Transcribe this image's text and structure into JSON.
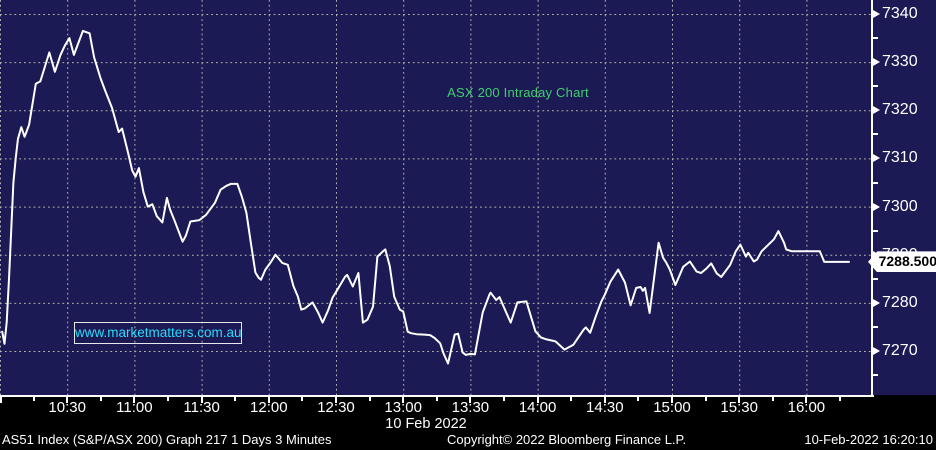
{
  "colors": {
    "plot_background": "#1c1a55",
    "grid": "#b4b4ac",
    "line": "#ffffff",
    "title_green": "#3fce6e",
    "watermark_cyan": "#2bd9f8",
    "axis_text": "#ffffff",
    "footer_background": "#000000",
    "badge_background": "#ffffff",
    "badge_text": "#000000"
  },
  "watermark": {
    "text": "www.marketmatters.com.au"
  },
  "footer": {
    "left": "AS51 Index (S&P/ASX 200) Graph 217 1 Days 3 Minutes",
    "center": "Copyright© 2022 Bloomberg Finance L.P.",
    "right": "10-Feb-2022 16:20:10"
  },
  "chart_data": {
    "type": "line",
    "title": "ASX 200 Intraday Chart",
    "date_label": "10 Feb 2022",
    "last_price": 7288.5,
    "last_price_label": "7288.500",
    "x_unit": "minutes since 10:00",
    "xlim_minutes": [
      0,
      389
    ],
    "ylim": [
      7260.5,
      7343
    ],
    "x_ticks_major": [
      {
        "label": "",
        "t": 0
      },
      {
        "label": "10:30",
        "t": 30
      },
      {
        "label": "11:00",
        "t": 60
      },
      {
        "label": "11:30",
        "t": 90
      },
      {
        "label": "12:00",
        "t": 120
      },
      {
        "label": "12:30",
        "t": 150
      },
      {
        "label": "13:00",
        "t": 180
      },
      {
        "label": "13:30",
        "t": 210
      },
      {
        "label": "14:00",
        "t": 240
      },
      {
        "label": "14:30",
        "t": 270
      },
      {
        "label": "15:00",
        "t": 300
      },
      {
        "label": "15:30",
        "t": 330
      },
      {
        "label": "16:00",
        "t": 360
      }
    ],
    "x_ticks_minor_t": [
      15,
      45,
      75,
      105,
      135,
      165,
      195,
      225,
      255,
      285,
      315,
      345,
      375
    ],
    "y_ticks_major": [
      7340,
      7330,
      7320,
      7310,
      7300,
      7290,
      7280,
      7270
    ],
    "y_ticks_minor": [
      7335,
      7325,
      7315,
      7305,
      7295,
      7285,
      7275,
      7265
    ],
    "grid": "dotted",
    "legend_position": "none",
    "series": [
      {
        "name": "ASX 200 Index (AS51)",
        "color": "#ffffff",
        "points": [
          [
            1,
            7274
          ],
          [
            2,
            7271.5
          ],
          [
            3,
            7276
          ],
          [
            4,
            7285
          ],
          [
            5,
            7295
          ],
          [
            6,
            7305
          ],
          [
            7,
            7310
          ],
          [
            8,
            7314
          ],
          [
            9.5,
            7316.5
          ],
          [
            11,
            7314.5
          ],
          [
            13,
            7317
          ],
          [
            16,
            7325.5
          ],
          [
            18,
            7326
          ],
          [
            20,
            7329
          ],
          [
            22,
            7332
          ],
          [
            24.5,
            7328
          ],
          [
            27,
            7331.5
          ],
          [
            29,
            7333.5
          ],
          [
            31,
            7335
          ],
          [
            33,
            7331.5
          ],
          [
            35,
            7334
          ],
          [
            37,
            7336.5
          ],
          [
            40,
            7336
          ],
          [
            42,
            7331
          ],
          [
            45,
            7326.5
          ],
          [
            47,
            7324
          ],
          [
            50,
            7320.5
          ],
          [
            53,
            7315.5
          ],
          [
            54.5,
            7316.2
          ],
          [
            57,
            7311.5
          ],
          [
            59,
            7307.5
          ],
          [
            60.5,
            7306.2
          ],
          [
            62,
            7308
          ],
          [
            64,
            7303
          ],
          [
            66,
            7300
          ],
          [
            68,
            7300.5
          ],
          [
            70,
            7298
          ],
          [
            72.5,
            7296.7
          ],
          [
            74.5,
            7301.8
          ],
          [
            76,
            7299.3
          ],
          [
            78,
            7297
          ],
          [
            81.5,
            7292.7
          ],
          [
            83,
            7294
          ],
          [
            85,
            7296.9
          ],
          [
            89,
            7297.2
          ],
          [
            92,
            7298.3
          ],
          [
            96,
            7300.8
          ],
          [
            98.5,
            7303.5
          ],
          [
            101,
            7304.3
          ],
          [
            103,
            7304.7
          ],
          [
            106,
            7304.7
          ],
          [
            108,
            7302
          ],
          [
            110,
            7298.7
          ],
          [
            112,
            7292.4
          ],
          [
            114,
            7286.3
          ],
          [
            115.5,
            7285.2
          ],
          [
            116.5,
            7284.8
          ],
          [
            118.5,
            7286.9
          ],
          [
            121,
            7288.5
          ],
          [
            123,
            7290
          ],
          [
            126,
            7288.3
          ],
          [
            128.5,
            7287.9
          ],
          [
            131,
            7283.5
          ],
          [
            133,
            7281.3
          ],
          [
            134.5,
            7278.6
          ],
          [
            136,
            7278.8
          ],
          [
            139.5,
            7280.1
          ],
          [
            142,
            7278
          ],
          [
            144,
            7275.9
          ],
          [
            146.5,
            7278.5
          ],
          [
            148.5,
            7281.1
          ],
          [
            151,
            7283
          ],
          [
            154,
            7285.4
          ],
          [
            155,
            7285.8
          ],
          [
            157.5,
            7283.4
          ],
          [
            160,
            7286.2
          ],
          [
            162,
            7275.9
          ],
          [
            164,
            7276.5
          ],
          [
            166.5,
            7279.2
          ],
          [
            168.5,
            7289.6
          ],
          [
            171,
            7290.7
          ],
          [
            172,
            7291.1
          ],
          [
            174,
            7287.6
          ],
          [
            176,
            7281.3
          ],
          [
            178.5,
            7278.6
          ],
          [
            180,
            7278.2
          ],
          [
            182,
            7274
          ],
          [
            183.5,
            7273.7
          ],
          [
            186,
            7273.5
          ],
          [
            189.5,
            7273.4
          ],
          [
            192,
            7273.3
          ],
          [
            194,
            7272.7
          ],
          [
            196.5,
            7271.6
          ],
          [
            198,
            7269.5
          ],
          [
            200,
            7267.4
          ],
          [
            203,
            7273.4
          ],
          [
            204.5,
            7273.6
          ],
          [
            206.5,
            7269.7
          ],
          [
            208,
            7269.2
          ],
          [
            210,
            7269.4
          ],
          [
            212,
            7269.3
          ],
          [
            215.5,
            7278
          ],
          [
            218.5,
            7281.7
          ],
          [
            219,
            7282.1
          ],
          [
            221.5,
            7280.6
          ],
          [
            223,
            7281.2
          ],
          [
            226,
            7278
          ],
          [
            228,
            7275.9
          ],
          [
            231,
            7280.1
          ],
          [
            235,
            7280.3
          ],
          [
            239,
            7274.1
          ],
          [
            241.5,
            7272.8
          ],
          [
            244,
            7272.4
          ],
          [
            248,
            7272
          ],
          [
            252,
            7270.3
          ],
          [
            256,
            7271.3
          ],
          [
            260.5,
            7274.4
          ],
          [
            261.5,
            7274.9
          ],
          [
            263.5,
            7273.8
          ],
          [
            266,
            7277.2
          ],
          [
            268.5,
            7280.3
          ],
          [
            270,
            7281.7
          ],
          [
            272.5,
            7284.4
          ],
          [
            276,
            7286.9
          ],
          [
            279,
            7284.2
          ],
          [
            281.5,
            7279.5
          ],
          [
            284,
            7283.1
          ],
          [
            286,
            7283.3
          ],
          [
            287,
            7282.5
          ],
          [
            288,
            7283.1
          ],
          [
            290,
            7277.9
          ],
          [
            294,
            7292.5
          ],
          [
            296,
            7289.4
          ],
          [
            297.5,
            7288.3
          ],
          [
            299,
            7286.9
          ],
          [
            301.5,
            7283.7
          ],
          [
            305,
            7287.5
          ],
          [
            308,
            7288.6
          ],
          [
            311,
            7286.5
          ],
          [
            313,
            7286.2
          ],
          [
            315.5,
            7287.2
          ],
          [
            317.5,
            7288.2
          ],
          [
            320,
            7286.1
          ],
          [
            322,
            7285.4
          ],
          [
            326,
            7287.9
          ],
          [
            328.5,
            7290.7
          ],
          [
            330.5,
            7292.1
          ],
          [
            333,
            7289.6
          ],
          [
            334,
            7290.4
          ],
          [
            336.5,
            7288.6
          ],
          [
            338,
            7289
          ],
          [
            340,
            7290.7
          ],
          [
            345.5,
            7293.2
          ],
          [
            347.5,
            7294.9
          ],
          [
            350,
            7292.5
          ],
          [
            351,
            7291.1
          ],
          [
            353.5,
            7290.7
          ],
          [
            366,
            7290.7
          ],
          [
            368,
            7288.5
          ],
          [
            379,
            7288.5
          ]
        ]
      }
    ]
  }
}
